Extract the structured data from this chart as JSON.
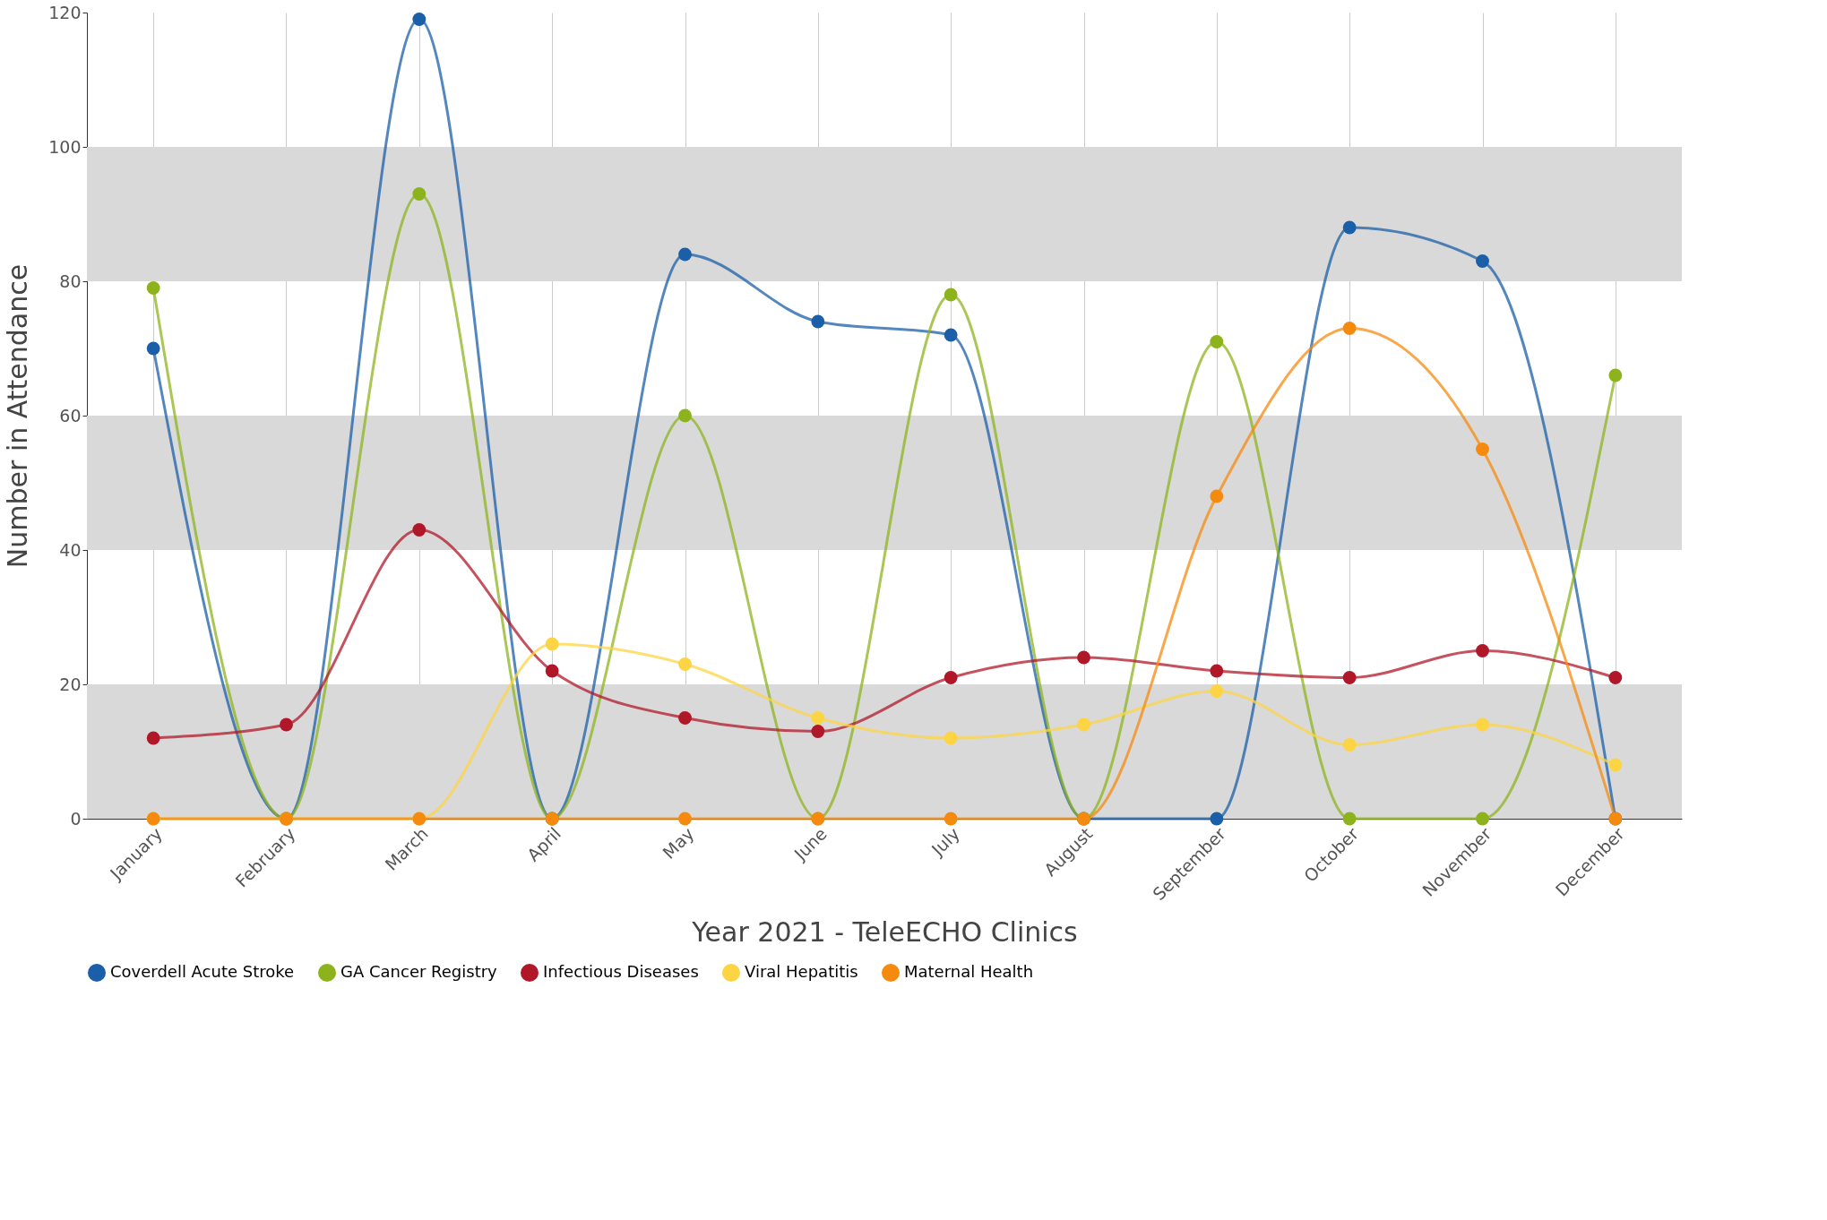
{
  "chart_data": {
    "type": "line",
    "xlabel": "Year 2021 - TeleECHO Clinics",
    "ylabel": "Number in Attendance",
    "categories": [
      "January",
      "February",
      "March",
      "April",
      "May",
      "June",
      "July",
      "August",
      "September",
      "October",
      "November",
      "December"
    ],
    "series": [
      {
        "name": "Coverdell Acute Stroke",
        "color": "#1a5fa8",
        "values": [
          70,
          0,
          119,
          0,
          84,
          74,
          72,
          0,
          0,
          88,
          83,
          0
        ]
      },
      {
        "name": "GA Cancer Registry",
        "color": "#8db31c",
        "values": [
          79,
          0,
          93,
          0,
          60,
          0,
          78,
          0,
          71,
          0,
          0,
          66
        ]
      },
      {
        "name": "Infectious Diseases",
        "color": "#b0182a",
        "values": [
          12,
          14,
          43,
          22,
          15,
          13,
          21,
          24,
          22,
          21,
          25,
          21
        ]
      },
      {
        "name": "Viral Hepatitis",
        "color": "#fdd443",
        "values": [
          0,
          0,
          0,
          26,
          23,
          15,
          12,
          14,
          19,
          11,
          14,
          8
        ]
      },
      {
        "name": "Maternal Health",
        "color": "#f58a0f",
        "values": [
          0,
          0,
          0,
          0,
          0,
          0,
          0,
          0,
          48,
          73,
          55,
          0
        ]
      }
    ],
    "ylim": [
      0,
      120
    ],
    "yticks": [
      0,
      20,
      40,
      60,
      80,
      100,
      120
    ],
    "bands": [
      {
        "axis": "y",
        "from": 0,
        "to": 20,
        "color": "#d9d9d9"
      },
      {
        "axis": "y",
        "from": 40,
        "to": 60,
        "color": "#d9d9d9"
      },
      {
        "axis": "y",
        "from": 80,
        "to": 100,
        "color": "#d9d9d9"
      }
    ],
    "grid": "x",
    "legend": "bottom",
    "marker": "circle",
    "line_style": "solid"
  }
}
